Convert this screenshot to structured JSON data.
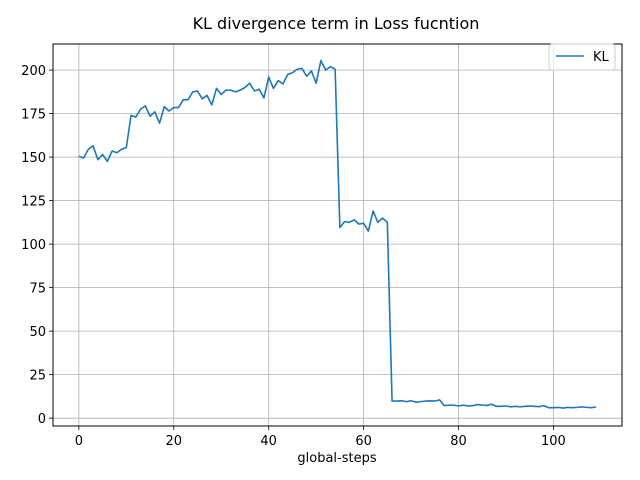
{
  "chart_data": {
    "type": "line",
    "title": "KL divergence term in Loss fucntion",
    "xlabel": "global-steps",
    "ylabel": "",
    "xlim": [
      -5.45,
      114.45
    ],
    "ylim": [
      -4.5,
      215
    ],
    "xticks": [
      0,
      20,
      40,
      60,
      80,
      100
    ],
    "yticks": [
      0,
      25,
      50,
      75,
      100,
      125,
      150,
      175,
      200
    ],
    "grid": true,
    "legend_position": "top-right",
    "color": "#1f77b4",
    "series": [
      {
        "name": "KL",
        "color": "#1f77b4",
        "x": [
          0,
          1,
          2,
          3,
          4,
          5,
          6,
          7,
          8,
          9,
          10,
          11,
          12,
          13,
          14,
          15,
          16,
          17,
          18,
          19,
          20,
          21,
          22,
          23,
          24,
          25,
          26,
          27,
          28,
          29,
          30,
          31,
          32,
          33,
          34,
          35,
          36,
          37,
          38,
          39,
          40,
          41,
          42,
          43,
          44,
          45,
          46,
          47,
          48,
          49,
          50,
          51,
          52,
          53,
          54,
          55,
          56,
          57,
          58,
          59,
          60,
          61,
          62,
          63,
          64,
          65,
          66,
          67,
          68,
          69,
          70,
          71,
          72,
          73,
          74,
          75,
          76,
          77,
          78,
          79,
          80,
          81,
          82,
          83,
          84,
          85,
          86,
          87,
          88,
          89,
          90,
          91,
          92,
          93,
          94,
          95,
          96,
          97,
          98,
          99,
          100,
          101,
          102,
          103,
          104,
          105,
          106,
          107,
          108,
          109
        ],
        "values": [
          150.5,
          149.5,
          154.5,
          156.5,
          148.5,
          151.5,
          147.5,
          153.5,
          152.5,
          154.5,
          155.5,
          174,
          173,
          177.5,
          179.5,
          173.5,
          176,
          169.5,
          179,
          176.5,
          178.5,
          178.5,
          183,
          183,
          187.5,
          188,
          183.5,
          185.5,
          180,
          189.5,
          186,
          188.5,
          188.5,
          187.5,
          188.5,
          190,
          192.5,
          188,
          189,
          184,
          196,
          189.5,
          194,
          192,
          197.5,
          198.5,
          200.5,
          201,
          196.5,
          199.5,
          192.5,
          205.5,
          200,
          202,
          200.5,
          109.5,
          113,
          112.5,
          114,
          111.5,
          112,
          107.5,
          119,
          112.5,
          115,
          112.5,
          9.8,
          9.8,
          10,
          9.5,
          10,
          9.2,
          9.5,
          9.8,
          10,
          9.8,
          10.5,
          7.2,
          7.5,
          7.5,
          7,
          7.5,
          7,
          7.2,
          7.8,
          7.5,
          7.3,
          8,
          6.8,
          6.8,
          7,
          6.5,
          6.8,
          6.5,
          6.8,
          7,
          6.8,
          6.6,
          7.2,
          6,
          6,
          6.2,
          5.8,
          6.2,
          6,
          6.2,
          6.5,
          6.2,
          6,
          6.5
        ]
      }
    ]
  }
}
